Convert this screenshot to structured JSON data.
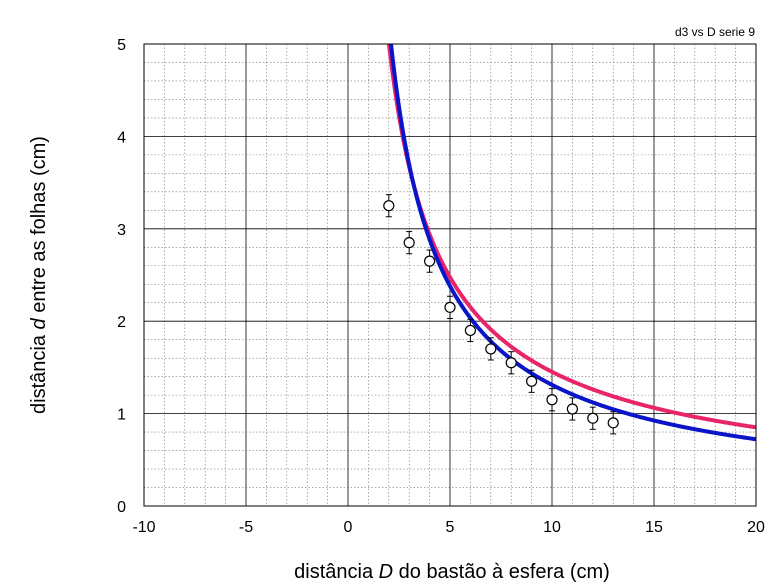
{
  "chart_data": {
    "type": "scatter",
    "corner_note": "d3 vs D serie 9",
    "xlabel": {
      "pre": "distância ",
      "var": "D",
      "post": " do bastão à esfera (cm)"
    },
    "ylabel": {
      "pre": "distância ",
      "var": "d",
      "post": " entre as folhas (cm)"
    },
    "xlim": [
      -10,
      20
    ],
    "ylim": [
      0,
      5
    ],
    "x_ticks": [
      -10,
      -5,
      0,
      5,
      10,
      15,
      20
    ],
    "y_ticks": [
      0,
      1,
      2,
      3,
      4,
      5
    ],
    "x_tick_labels": [
      "-10",
      "-5",
      "0",
      "5",
      "10",
      "15",
      "20"
    ],
    "y_tick_labels": [
      "0",
      "1",
      "2",
      "3",
      "4",
      "5"
    ],
    "grid": true,
    "points": {
      "x": [
        2,
        3,
        4,
        5,
        6,
        7,
        8,
        9,
        10,
        11,
        12,
        13
      ],
      "y": [
        3.25,
        2.85,
        2.65,
        2.15,
        1.9,
        1.7,
        1.55,
        1.35,
        1.15,
        1.05,
        0.95,
        0.9
      ],
      "y_err": 0.12,
      "color": "#000000"
    },
    "fits": [
      {
        "color": "#e8246b",
        "coefficient": 8.55,
        "exponent": 0.77
      },
      {
        "color": "#0a14c8",
        "coefficient": 9.5,
        "exponent": 0.86
      }
    ]
  }
}
